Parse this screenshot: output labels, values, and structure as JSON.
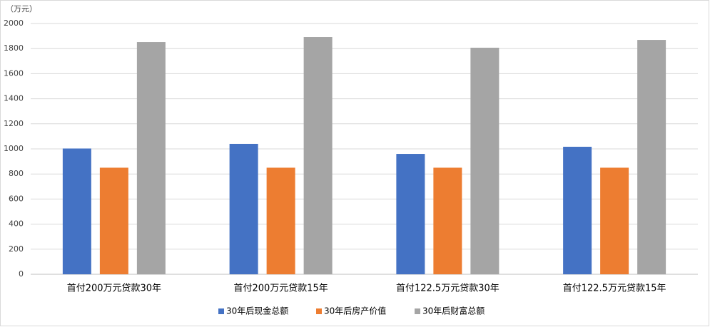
{
  "chart_data": {
    "type": "bar",
    "y_label": "（万元）",
    "categories": [
      "首付200万元贷款30年",
      "首付200万元贷款15年",
      "首付122.5万元贷款30年",
      "首付122.5万元贷款15年"
    ],
    "series": [
      {
        "name": "30年后现金总额",
        "color": "#4472c4",
        "values": [
          1003,
          1040,
          960,
          1017
        ]
      },
      {
        "name": "30年后房产价值",
        "color": "#ed7d31",
        "values": [
          850,
          850,
          850,
          850
        ]
      },
      {
        "name": "30年后财富总额",
        "color": "#a5a5a5",
        "values": [
          1852,
          1892,
          1807,
          1869
        ]
      }
    ],
    "ylim": [
      0,
      2000
    ],
    "yticks": [
      0,
      200,
      400,
      600,
      800,
      1000,
      1200,
      1400,
      1600,
      1800,
      2000
    ],
    "grid": true
  }
}
